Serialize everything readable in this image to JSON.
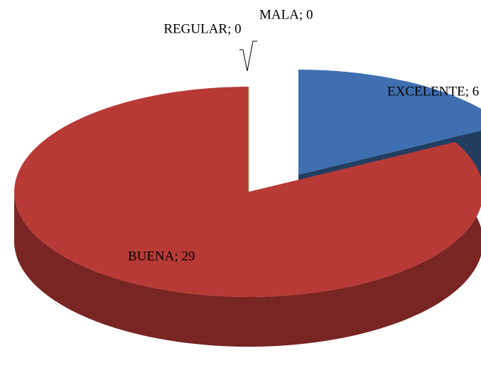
{
  "chart_data": {
    "type": "pie",
    "values": [
      6,
      29,
      0,
      0
    ],
    "value_labels": [
      "EXCELENTE; 6",
      "BUENA; 29",
      "REGULAR; 0",
      "MALA; 0"
    ],
    "colors": [
      "#3f6fb0",
      "#b83a36",
      "#8a8a8a",
      "#9bbb59"
    ]
  }
}
